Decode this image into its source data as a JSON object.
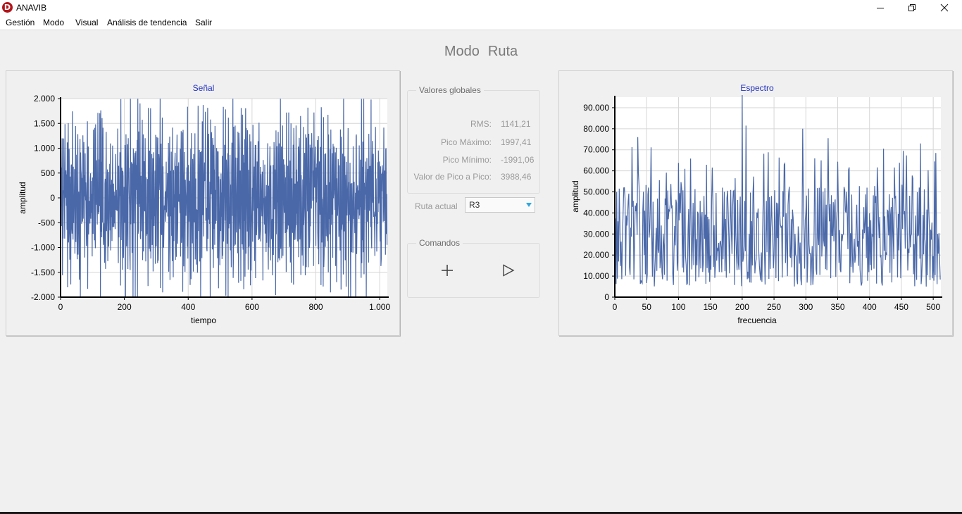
{
  "window": {
    "title": "ANAVIB",
    "icon_letter": "D"
  },
  "menu": [
    {
      "label": "Gestión"
    },
    {
      "label": "Modo"
    },
    {
      "label": "Visual"
    },
    {
      "label": "Análisis de tendencia"
    },
    {
      "label": "Salir"
    }
  ],
  "mode": {
    "label": "Modo",
    "value": "Ruta"
  },
  "global_values": {
    "title": "Valores globales",
    "rows": [
      {
        "label": "RMS:",
        "value": "1141,21"
      },
      {
        "label": "Pico Máximo:",
        "value": "1997,41"
      },
      {
        "label": "Pico Mínimo:",
        "value": "-1991,06"
      },
      {
        "label": "Valor de Pico a Pico:",
        "value": "3988,46"
      }
    ]
  },
  "route": {
    "label": "Ruta actual",
    "selected": "R3"
  },
  "commands": {
    "title": "Comandos"
  },
  "colors": {
    "series": "#4a68a8",
    "title": "#1f2fbf",
    "grid": "#d6d6d6",
    "disabled_text": "#9a9a9a"
  },
  "chart_data": [
    {
      "type": "line",
      "title": "Señal",
      "xlabel": "tiempo",
      "ylabel": "amplitud",
      "xlim": [
        0,
        1024
      ],
      "ylim": [
        -2000,
        2000
      ],
      "xticks": [
        0,
        200,
        400,
        600,
        800,
        1000
      ],
      "xtick_labels": [
        "0",
        "200",
        "400",
        "600",
        "800",
        "1.000"
      ],
      "yticks": [
        2000,
        1500,
        1000,
        500,
        0,
        -500,
        -1000,
        -1500,
        -2000
      ],
      "ytick_labels": [
        "2.000",
        "1.500",
        "1.000",
        "500",
        "0",
        "-500",
        "-1.000",
        "-1.500",
        "-2.000"
      ],
      "grid": true,
      "series": [
        {
          "n_points": 1024,
          "min": -1991.06,
          "max": 1997.41,
          "rms": 1141.21,
          "seed": 7
        }
      ]
    },
    {
      "type": "line",
      "title": "Espectro",
      "xlabel": "frecuencia",
      "ylabel": "amplitud",
      "xlim": [
        0,
        512
      ],
      "ylim": [
        0,
        95000
      ],
      "xticks": [
        0,
        50,
        100,
        150,
        200,
        250,
        300,
        350,
        400,
        450,
        500
      ],
      "xtick_labels": [
        "0",
        "50",
        "100",
        "150",
        "200",
        "250",
        "300",
        "350",
        "400",
        "450",
        "500"
      ],
      "yticks": [
        90000,
        80000,
        70000,
        60000,
        50000,
        40000,
        30000,
        20000,
        10000,
        0
      ],
      "ytick_labels": [
        "90.000",
        "80.000",
        "70.000",
        "60.000",
        "50.000",
        "40.000",
        "30.000",
        "20.000",
        "10.000",
        "0"
      ],
      "grid": true,
      "peaks": [
        [
          200,
          96000
        ],
        [
          206,
          81500
        ],
        [
          295,
          80000
        ],
        [
          335,
          75500
        ],
        [
          480,
          73000
        ],
        [
          36,
          76000
        ]
      ],
      "series": [
        {
          "n_points": 512,
          "seed": 13
        }
      ]
    }
  ]
}
